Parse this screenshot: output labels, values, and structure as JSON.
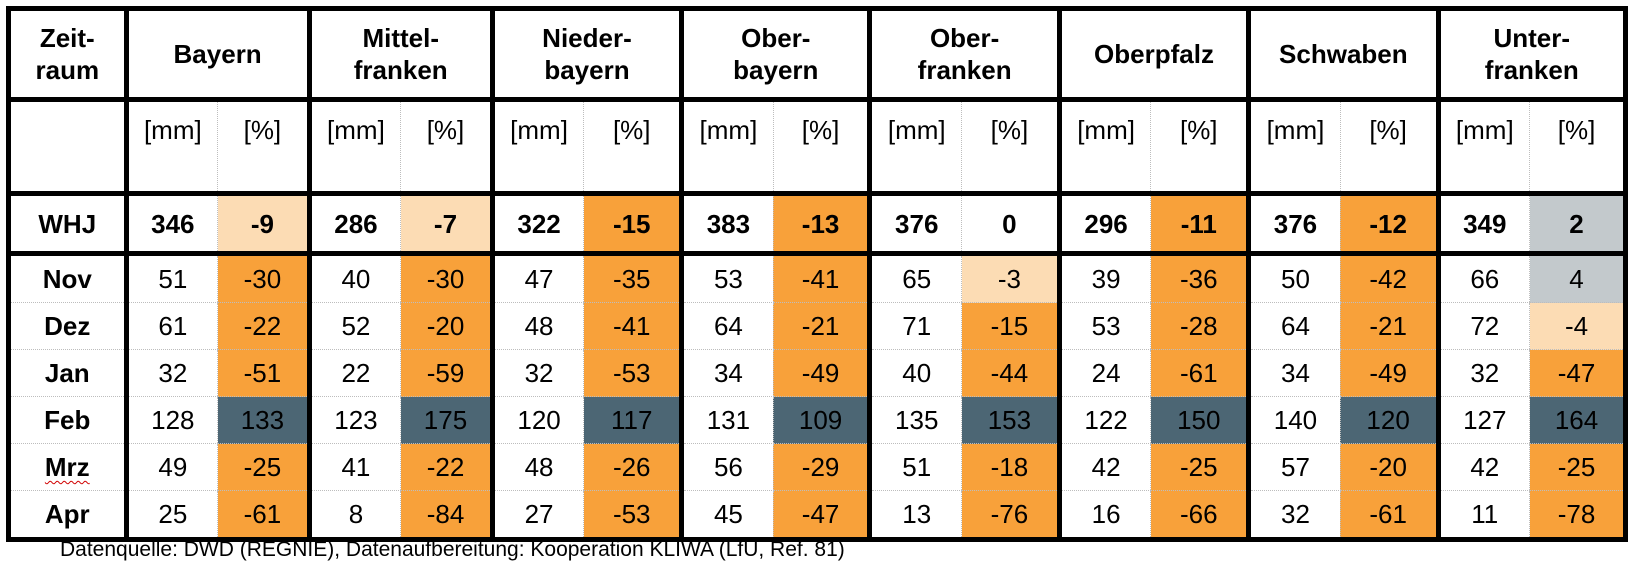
{
  "header": {
    "zeitraum": [
      "Zeit-",
      "raum"
    ],
    "regions": [
      {
        "name": [
          "Bayern"
        ]
      },
      {
        "name": [
          "Mittel-",
          "franken"
        ]
      },
      {
        "name": [
          "Nieder-",
          "bayern"
        ]
      },
      {
        "name": [
          "Ober-",
          "bayern"
        ]
      },
      {
        "name": [
          "Ober-",
          "franken"
        ]
      },
      {
        "name": [
          "Oberpfalz"
        ]
      },
      {
        "name": [
          "Schwaben"
        ]
      },
      {
        "name": [
          "Unter-",
          "franken"
        ]
      }
    ],
    "unit_mm": "[mm]",
    "unit_pct": "[%]"
  },
  "colors": {
    "orange": "#f8a13a",
    "light": "#fcdcb4",
    "gray": "#c3c9cc",
    "dark": "#4c6674"
  },
  "rows": [
    {
      "label": "WHJ",
      "cells": [
        {
          "mm": "346",
          "pct": "-9",
          "c": "light"
        },
        {
          "mm": "286",
          "pct": "-7",
          "c": "light"
        },
        {
          "mm": "322",
          "pct": "-15",
          "c": "orange"
        },
        {
          "mm": "383",
          "pct": "-13",
          "c": "orange"
        },
        {
          "mm": "376",
          "pct": "0",
          "c": "none"
        },
        {
          "mm": "296",
          "pct": "-11",
          "c": "orange"
        },
        {
          "mm": "376",
          "pct": "-12",
          "c": "orange"
        },
        {
          "mm": "349",
          "pct": "2",
          "c": "gray"
        }
      ]
    },
    {
      "label": "Nov",
      "cells": [
        {
          "mm": "51",
          "pct": "-30",
          "c": "orange"
        },
        {
          "mm": "40",
          "pct": "-30",
          "c": "orange"
        },
        {
          "mm": "47",
          "pct": "-35",
          "c": "orange"
        },
        {
          "mm": "53",
          "pct": "-41",
          "c": "orange"
        },
        {
          "mm": "65",
          "pct": "-3",
          "c": "light"
        },
        {
          "mm": "39",
          "pct": "-36",
          "c": "orange"
        },
        {
          "mm": "50",
          "pct": "-42",
          "c": "orange"
        },
        {
          "mm": "66",
          "pct": "4",
          "c": "gray"
        }
      ]
    },
    {
      "label": "Dez",
      "cells": [
        {
          "mm": "61",
          "pct": "-22",
          "c": "orange"
        },
        {
          "mm": "52",
          "pct": "-20",
          "c": "orange"
        },
        {
          "mm": "48",
          "pct": "-41",
          "c": "orange"
        },
        {
          "mm": "64",
          "pct": "-21",
          "c": "orange"
        },
        {
          "mm": "71",
          "pct": "-15",
          "c": "orange"
        },
        {
          "mm": "53",
          "pct": "-28",
          "c": "orange"
        },
        {
          "mm": "64",
          "pct": "-21",
          "c": "orange"
        },
        {
          "mm": "72",
          "pct": "-4",
          "c": "light"
        }
      ]
    },
    {
      "label": "Jan",
      "cells": [
        {
          "mm": "32",
          "pct": "-51",
          "c": "orange"
        },
        {
          "mm": "22",
          "pct": "-59",
          "c": "orange"
        },
        {
          "mm": "32",
          "pct": "-53",
          "c": "orange"
        },
        {
          "mm": "34",
          "pct": "-49",
          "c": "orange"
        },
        {
          "mm": "40",
          "pct": "-44",
          "c": "orange"
        },
        {
          "mm": "24",
          "pct": "-61",
          "c": "orange"
        },
        {
          "mm": "34",
          "pct": "-49",
          "c": "orange"
        },
        {
          "mm": "32",
          "pct": "-47",
          "c": "orange"
        }
      ]
    },
    {
      "label": "Feb",
      "cells": [
        {
          "mm": "128",
          "pct": "133",
          "c": "dark"
        },
        {
          "mm": "123",
          "pct": "175",
          "c": "dark"
        },
        {
          "mm": "120",
          "pct": "117",
          "c": "dark"
        },
        {
          "mm": "131",
          "pct": "109",
          "c": "dark"
        },
        {
          "mm": "135",
          "pct": "153",
          "c": "dark"
        },
        {
          "mm": "122",
          "pct": "150",
          "c": "dark"
        },
        {
          "mm": "140",
          "pct": "120",
          "c": "dark"
        },
        {
          "mm": "127",
          "pct": "164",
          "c": "dark"
        }
      ]
    },
    {
      "label": "Mrz",
      "squiggle": true,
      "cells": [
        {
          "mm": "49",
          "pct": "-25",
          "c": "orange"
        },
        {
          "mm": "41",
          "pct": "-22",
          "c": "orange"
        },
        {
          "mm": "48",
          "pct": "-26",
          "c": "orange"
        },
        {
          "mm": "56",
          "pct": "-29",
          "c": "orange"
        },
        {
          "mm": "51",
          "pct": "-18",
          "c": "orange"
        },
        {
          "mm": "42",
          "pct": "-25",
          "c": "orange"
        },
        {
          "mm": "57",
          "pct": "-20",
          "c": "orange"
        },
        {
          "mm": "42",
          "pct": "-25",
          "c": "orange"
        }
      ]
    },
    {
      "label": "Apr",
      "cells": [
        {
          "mm": "25",
          "pct": "-61",
          "c": "orange"
        },
        {
          "mm": "8",
          "pct": "-84",
          "c": "orange"
        },
        {
          "mm": "27",
          "pct": "-53",
          "c": "orange"
        },
        {
          "mm": "45",
          "pct": "-47",
          "c": "orange"
        },
        {
          "mm": "13",
          "pct": "-76",
          "c": "orange"
        },
        {
          "mm": "16",
          "pct": "-66",
          "c": "orange"
        },
        {
          "mm": "32",
          "pct": "-61",
          "c": "orange"
        },
        {
          "mm": "11",
          "pct": "-78",
          "c": "orange"
        }
      ]
    }
  ],
  "footnote": "Datenquelle: DWD (REGNIE), Datenaufbereitung: Kooperation KLIWA (LfU, Ref. 81)"
}
